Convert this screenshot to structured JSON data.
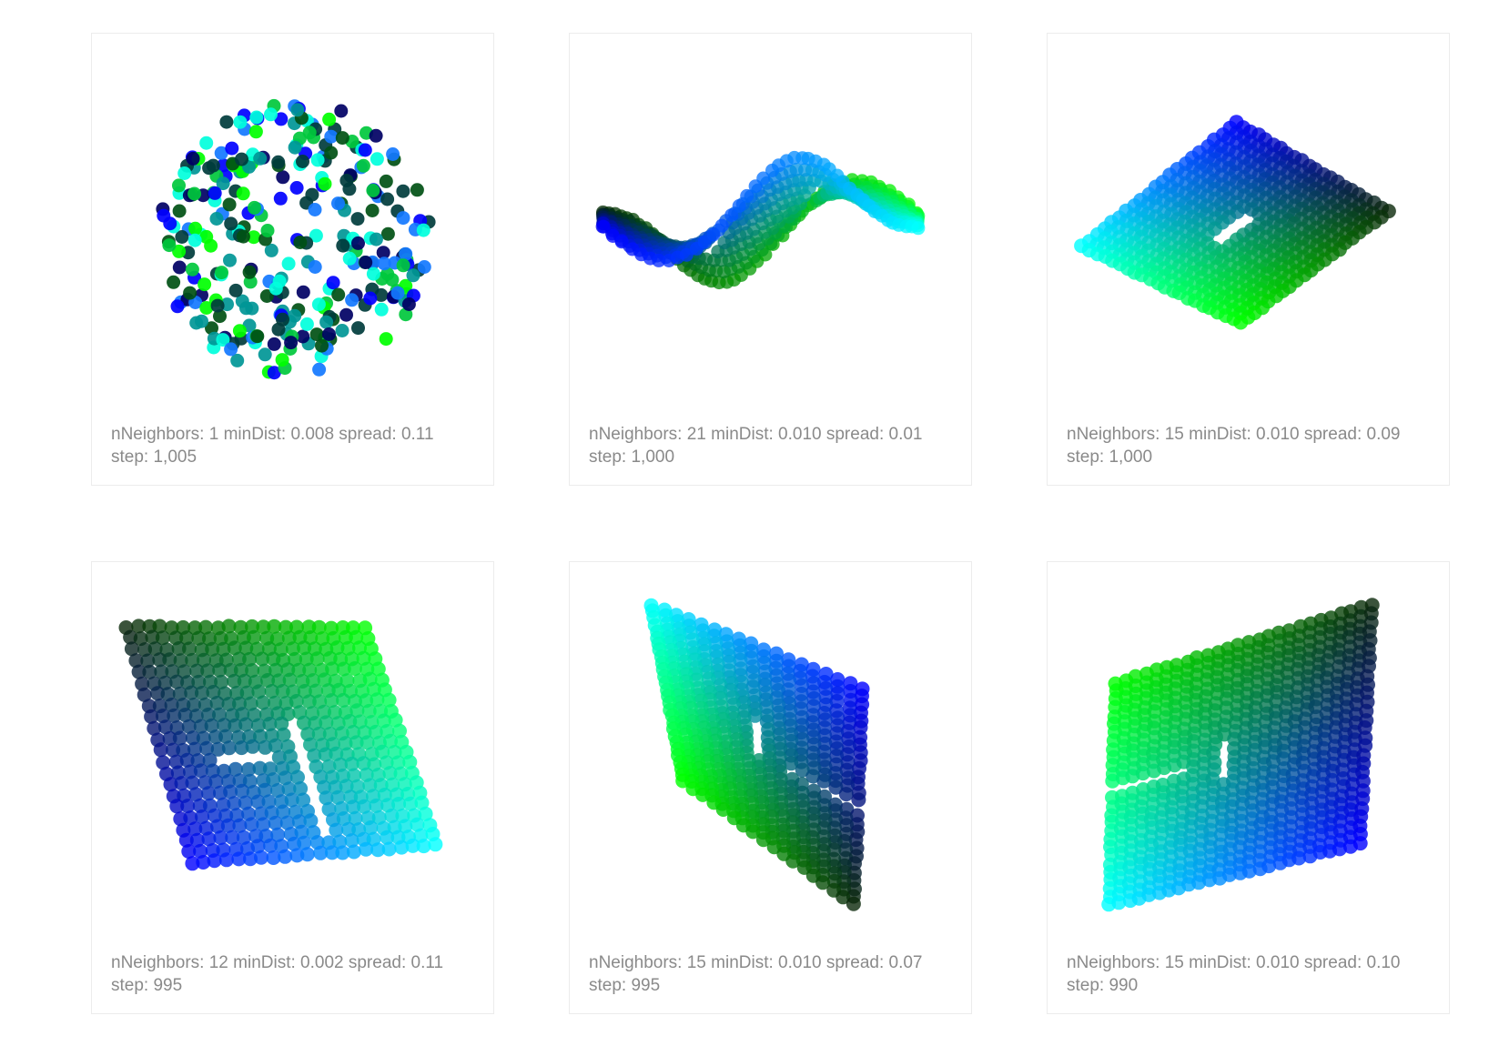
{
  "panels": [
    {
      "params": "nNeighbors: 1 minDist: 0.008 spread: 0.11",
      "step": "step: 1,005"
    },
    {
      "params": "nNeighbors: 21 minDist: 0.010 spread: 0.01",
      "step": "step: 1,000"
    },
    {
      "params": "nNeighbors: 15 minDist: 0.010 spread: 0.09",
      "step": "step: 1,000"
    },
    {
      "params": "nNeighbors: 12 minDist: 0.002 spread: 0.11",
      "step": "step: 995"
    },
    {
      "params": "nNeighbors: 15 minDist: 0.010 spread: 0.07",
      "step": "step: 995"
    },
    {
      "params": "nNeighbors: 15 minDist: 0.010 spread: 0.10",
      "step": "step: 990"
    }
  ],
  "chart_data": [
    {
      "type": "scatter",
      "point_count": 300,
      "shape": "random scatter"
    },
    {
      "type": "scatter",
      "point_count": 500,
      "shape": "twisted strip"
    },
    {
      "type": "scatter",
      "point_count": 500,
      "shape": "parallelogram grid"
    },
    {
      "type": "scatter",
      "point_count": 500,
      "shape": "parallelogram grid"
    },
    {
      "type": "scatter",
      "point_count": 500,
      "shape": "parallelogram grid"
    },
    {
      "type": "scatter",
      "point_count": 500,
      "shape": "parallelogram grid"
    }
  ],
  "colors": {
    "background": "#ffffff",
    "card_border": "#ececec",
    "caption_text": "#8a8a8a",
    "palette": [
      "#0000ff",
      "#00ff00",
      "#00ffff",
      "#002200"
    ]
  }
}
